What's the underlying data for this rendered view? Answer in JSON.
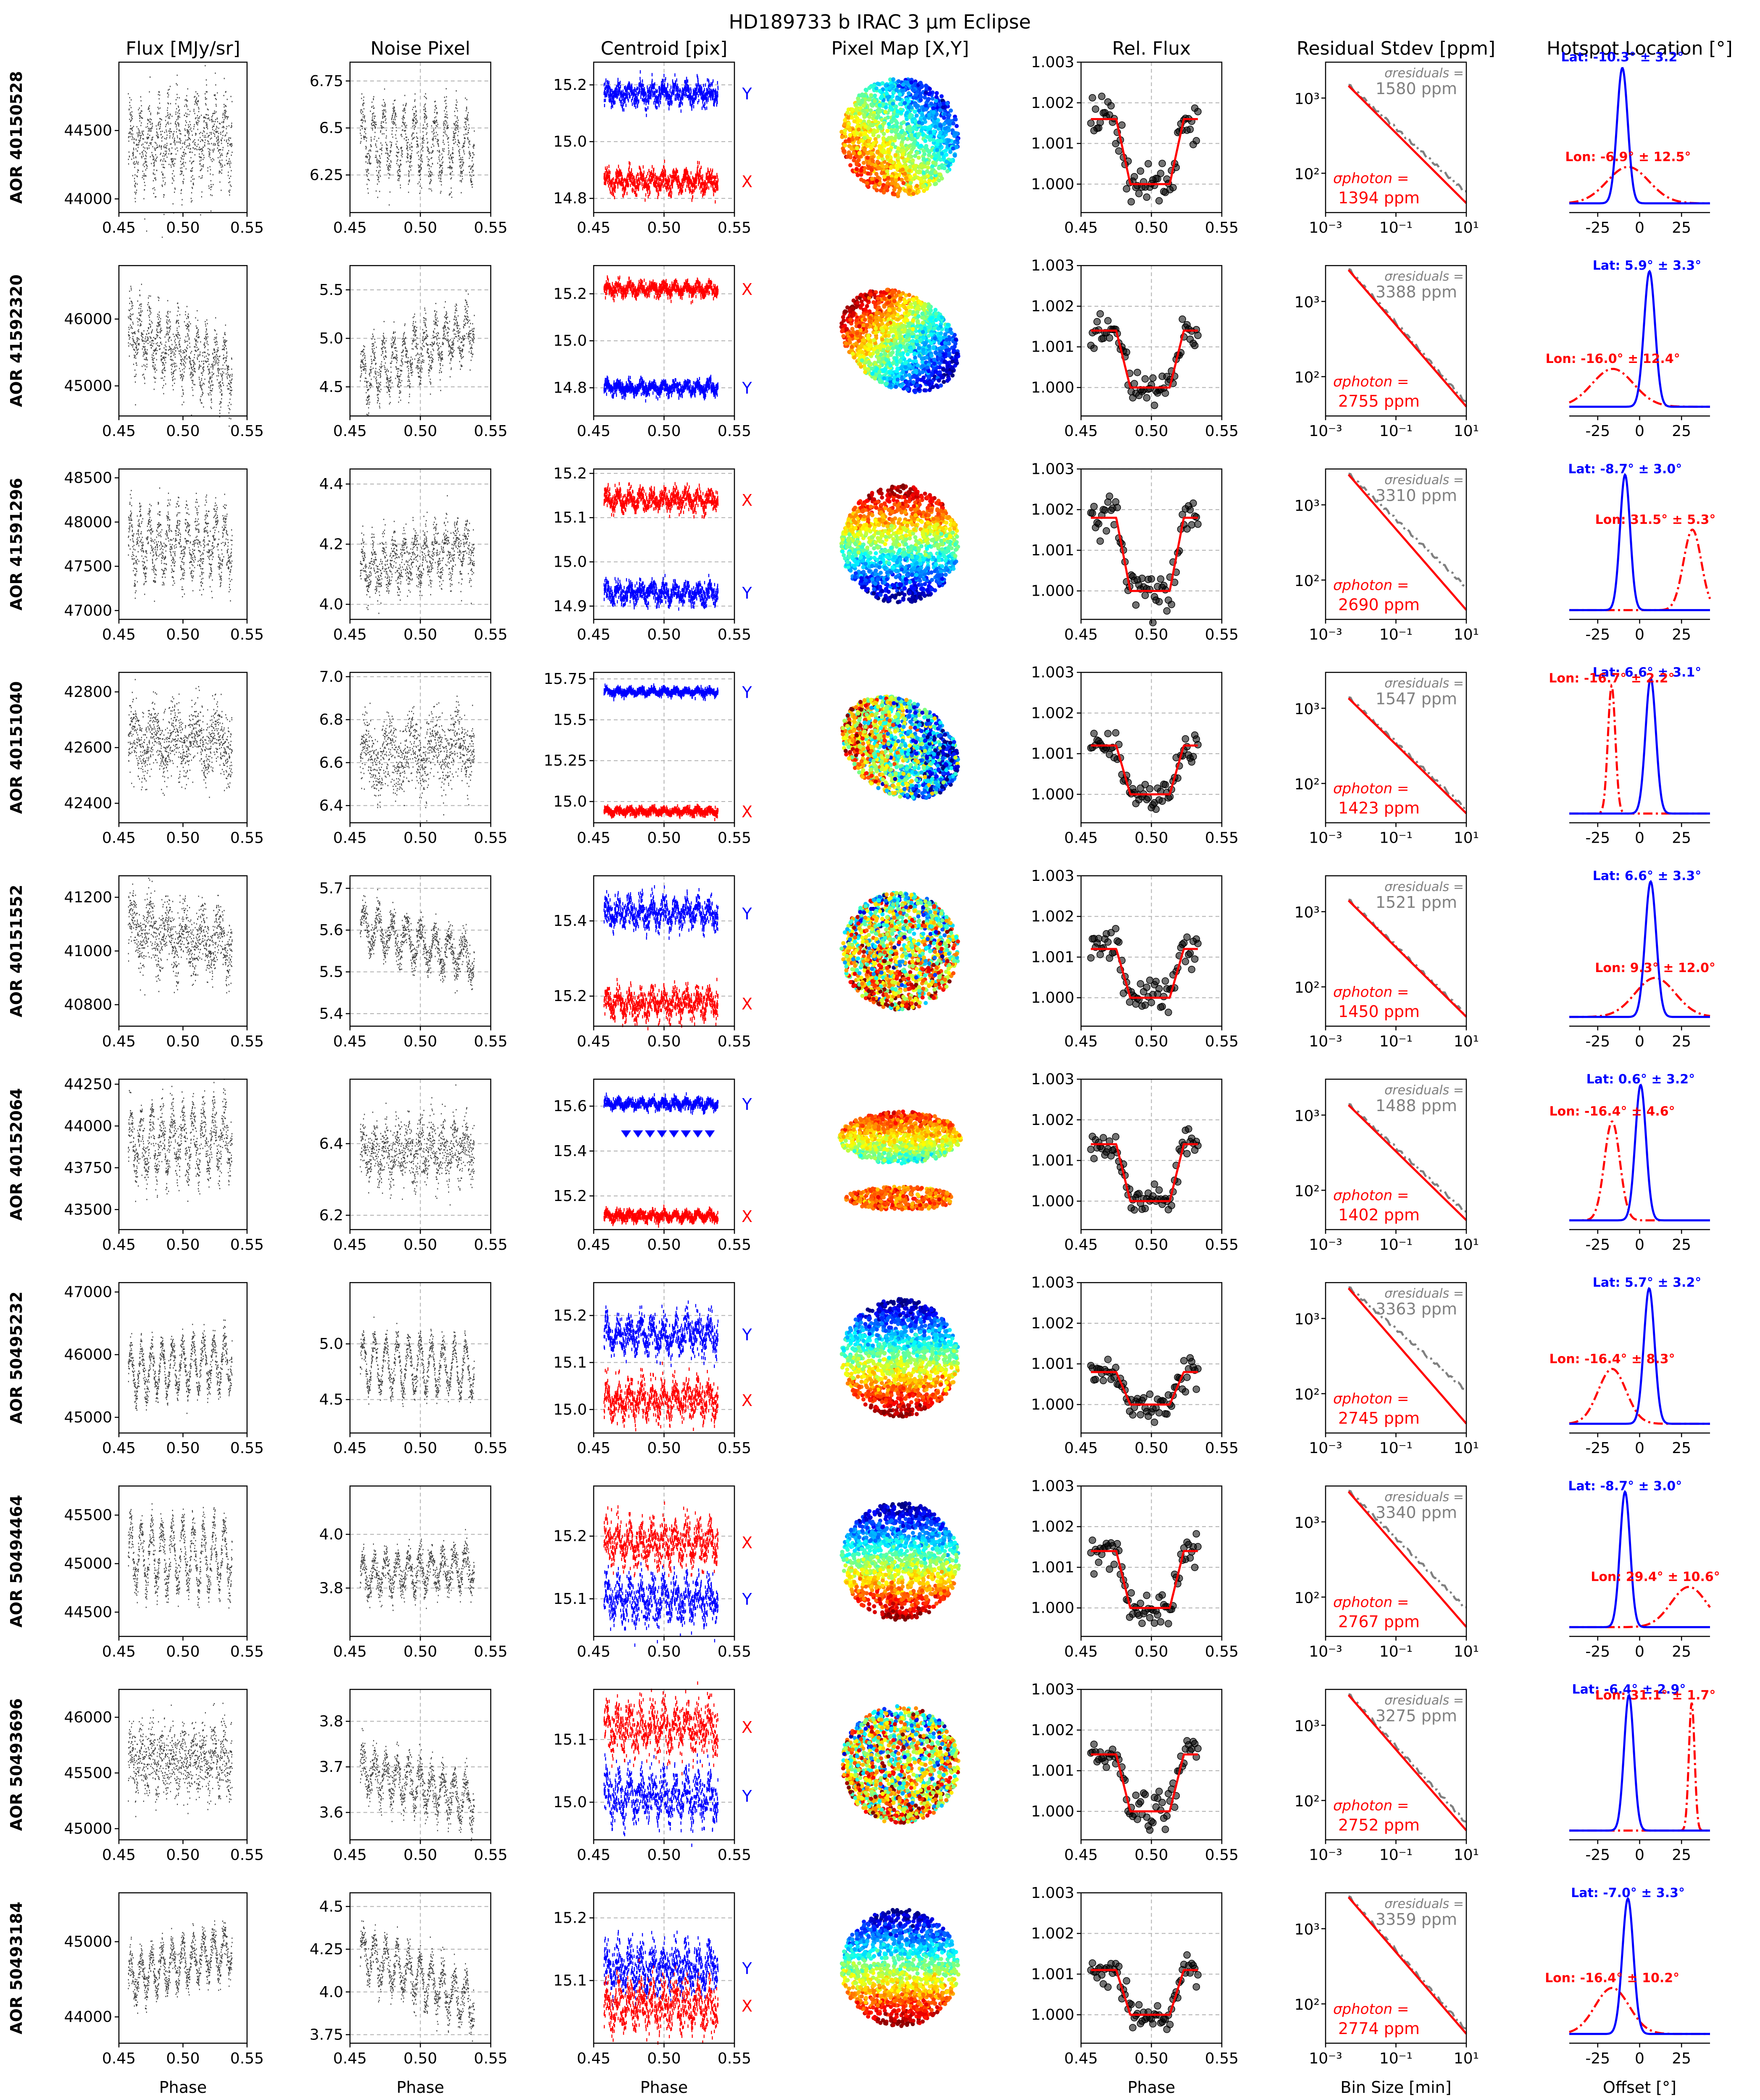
{
  "figure": {
    "title": "HD189733 b IRAC 3 μm Eclipse",
    "column_titles": [
      "Flux [MJy/sr]",
      "Noise Pixel",
      "Centroid [pix]",
      "Pixel Map [X,Y]",
      "Rel. Flux",
      "Residual Stdev [ppm]",
      "Hotspot Location [°]"
    ],
    "bottom_xlabels": [
      "Phase",
      "Phase",
      "Phase",
      "",
      "Phase",
      "Bin Size [min]",
      "Offset [°]"
    ],
    "row_labels": [
      "AOR 40150528",
      "AOR 41592320",
      "AOR 41591296",
      "AOR 40151040",
      "AOR 40151552",
      "AOR 40152064",
      "AOR 50495232",
      "AOR 50494464",
      "AOR 50493696",
      "AOR 50493184"
    ]
  },
  "colors": {
    "x_centroid": "#ff0000",
    "y_centroid": "#0000ff",
    "model": "#ff0000",
    "residual_line": "#808080",
    "lat_curve": "#0000ff",
    "lon_curve": "#ff0000",
    "data": "#000000"
  },
  "chart_data": {
    "type": "scatter",
    "phase_axis": {
      "range": [
        0.45,
        0.55
      ],
      "ticks": [
        "0.45",
        "0.50",
        "0.55"
      ]
    },
    "relflux_axis": {
      "range": [
        0.9993,
        1.003
      ],
      "ticks": [
        "1.000",
        "1.001",
        "1.002",
        "1.003"
      ]
    },
    "residual_axis": {
      "scale": "log",
      "x_range": [
        0.001,
        10
      ],
      "y_range": [
        30,
        3000
      ],
      "x_ticks": [
        "10⁻³",
        "10⁻¹",
        "10¹"
      ],
      "y_ticks": [
        "10²",
        "10³"
      ]
    },
    "hotspot_axis": {
      "range": [
        -42,
        42
      ],
      "ticks": [
        "-25",
        "0",
        "25"
      ]
    },
    "pixel_map": {
      "colormap": "jet"
    },
    "rows": [
      {
        "aor": "AOR 40150528",
        "flux": {
          "ticks": [
            44000,
            44500
          ],
          "ylim": [
            43900,
            45000
          ],
          "mean": 44420,
          "amp": 180,
          "noise": 140,
          "trend": 80,
          "cycles": 11
        },
        "noise_pixel": {
          "ticks": [
            6.25,
            6.5,
            6.75
          ],
          "ylim": [
            6.05,
            6.85
          ],
          "mean": 6.42,
          "amp": 0.16,
          "noise": 0.06,
          "trend": -0.02,
          "cycles": 11
        },
        "centroid": {
          "ticks": [
            14.8,
            15.0,
            15.2
          ],
          "ylim": [
            14.75,
            15.28
          ],
          "x_mean": 14.86,
          "y_mean": 15.17,
          "amp": 0.02,
          "label_x": "X",
          "label_y": "Y",
          "pattern": "normal"
        },
        "pixel_map": {
          "shape": "round",
          "cmap_dir": "tr-bl"
        },
        "rel_flux": {
          "depth": 0.0016,
          "noise": 0.0003
        },
        "residuals": {
          "sigma_residuals_label": "σresiduals =",
          "sigma_residuals_value": "1580 ppm",
          "sigma_photon_label": "σphoton =",
          "sigma_photon_value": "1394 ppm",
          "start": 1500,
          "end_gray": 55,
          "end_red": 40
        },
        "hotspot": {
          "lat": -10.3,
          "lat_sd": 3.2,
          "lon": -6.9,
          "lon_sd": 12.5,
          "lat_label": "Lat: -10.3° ± 3.2°",
          "lon_label": "Lon: -6.9° ± 12.5°"
        }
      },
      {
        "aor": "AOR 41592320",
        "flux": {
          "ticks": [
            45000,
            46000
          ],
          "ylim": [
            44550,
            46800
          ],
          "mean": 45500,
          "amp": 320,
          "noise": 200,
          "trend": -600,
          "cycles": 11
        },
        "noise_pixel": {
          "ticks": [
            4.5,
            5.0,
            5.5
          ],
          "ylim": [
            4.2,
            5.75
          ],
          "mean": 4.85,
          "amp": 0.22,
          "noise": 0.1,
          "trend": 0.5,
          "cycles": 11
        },
        "centroid": {
          "ticks": [
            14.8,
            15.0,
            15.2
          ],
          "ylim": [
            14.68,
            15.32
          ],
          "x_mean": 15.22,
          "y_mean": 14.8,
          "amp": 0.015,
          "label_x": "X",
          "label_y": "Y",
          "pattern": "normal"
        },
        "pixel_map": {
          "shape": "tilted",
          "cmap_dir": "tl-br"
        },
        "rel_flux": {
          "depth": 0.0014,
          "noise": 0.0002
        },
        "residuals": {
          "sigma_residuals_label": "σresiduals =",
          "sigma_residuals_value": "3388 ppm",
          "sigma_photon_label": "σphoton =",
          "sigma_photon_value": "2755 ppm",
          "start": 2700,
          "end_gray": 45,
          "end_red": 40
        },
        "hotspot": {
          "lat": 5.9,
          "lat_sd": 3.3,
          "lon": -16.0,
          "lon_sd": 12.4,
          "lat_label": "Lat: 5.9° ± 3.3°",
          "lon_label": "Lon: -16.0° ± 12.4°"
        }
      },
      {
        "aor": "AOR 41591296",
        "flux": {
          "ticks": [
            47000,
            47500,
            48000,
            48500
          ],
          "ylim": [
            46900,
            48600
          ],
          "mean": 47750,
          "amp": 300,
          "noise": 150,
          "trend": 0,
          "cycles": 11
        },
        "noise_pixel": {
          "ticks": [
            4.0,
            4.2,
            4.4
          ],
          "ylim": [
            3.95,
            4.45
          ],
          "mean": 4.15,
          "amp": 0.06,
          "noise": 0.04,
          "trend": 0.08,
          "cycles": 11
        },
        "centroid": {
          "ticks": [
            14.9,
            15.0,
            15.1,
            15.2
          ],
          "ylim": [
            14.87,
            15.21
          ],
          "x_mean": 15.14,
          "y_mean": 14.93,
          "amp": 0.012,
          "label_x": "X",
          "label_y": "Y",
          "pattern": "normal"
        },
        "pixel_map": {
          "shape": "round",
          "cmap_dir": "b-t"
        },
        "rel_flux": {
          "depth": 0.0018,
          "noise": 0.00025
        },
        "residuals": {
          "sigma_residuals_label": "σresiduals =",
          "sigma_residuals_value": "3310 ppm",
          "sigma_photon_label": "σphoton =",
          "sigma_photon_value": "2690 ppm",
          "start": 2600,
          "end_gray": 80,
          "end_red": 40
        },
        "hotspot": {
          "lat": -8.7,
          "lat_sd": 3.0,
          "lon": 31.5,
          "lon_sd": 5.3,
          "lat_label": "Lat: -8.7° ± 3.0°",
          "lon_label": "Lon: 31.5° ± 5.3°"
        }
      },
      {
        "aor": "AOR 40151040",
        "flux": {
          "ticks": [
            42400,
            42600,
            42800
          ],
          "ylim": [
            42330,
            42870
          ],
          "mean": 42620,
          "amp": 50,
          "noise": 60,
          "trend": 0,
          "cycles": 5
        },
        "noise_pixel": {
          "ticks": [
            6.4,
            6.6,
            6.8,
            7.0
          ],
          "ylim": [
            6.32,
            7.02
          ],
          "mean": 6.65,
          "amp": 0.07,
          "noise": 0.08,
          "trend": 0.06,
          "cycles": 5
        },
        "centroid": {
          "ticks": [
            15.0,
            15.25,
            15.5,
            15.75
          ],
          "ylim": [
            14.87,
            15.79
          ],
          "x_mean": 14.94,
          "y_mean": 15.67,
          "amp": 0.012,
          "label_x": "X",
          "label_y": "Y",
          "pattern": "normal"
        },
        "pixel_map": {
          "shape": "tilted",
          "cmap_dir": "speckle"
        },
        "rel_flux": {
          "depth": 0.0012,
          "noise": 0.0002
        },
        "residuals": {
          "sigma_residuals_label": "σresiduals =",
          "sigma_residuals_value": "1547 ppm",
          "sigma_photon_label": "σphoton =",
          "sigma_photon_value": "1423 ppm",
          "start": 1400,
          "end_gray": 45,
          "end_red": 40
        },
        "hotspot": {
          "lat": 6.6,
          "lat_sd": 3.1,
          "lon": -16.7,
          "lon_sd": 2.2,
          "lat_label": "Lat: 6.6° ± 3.1°",
          "lon_label": "Lon: -16.7° ± 2.2°"
        }
      },
      {
        "aor": "AOR 40151552",
        "flux": {
          "ticks": [
            40800,
            41000,
            41200
          ],
          "ylim": [
            40720,
            41280
          ],
          "mean": 41050,
          "amp": 60,
          "noise": 60,
          "trend": -60,
          "cycles": 6
        },
        "noise_pixel": {
          "ticks": [
            5.4,
            5.5,
            5.6,
            5.7
          ],
          "ylim": [
            5.37,
            5.73
          ],
          "mean": 5.57,
          "amp": 0.04,
          "noise": 0.02,
          "trend": -0.08,
          "cycles": 8
        },
        "centroid": {
          "ticks": [
            15.2,
            15.4
          ],
          "ylim": [
            15.12,
            15.52
          ],
          "x_mean": 15.18,
          "y_mean": 15.42,
          "amp": 0.02,
          "label_x": "X",
          "label_y": "Y",
          "pattern": "normal"
        },
        "pixel_map": {
          "shape": "round",
          "cmap_dir": "mid"
        },
        "rel_flux": {
          "depth": 0.0012,
          "noise": 0.0002
        },
        "residuals": {
          "sigma_residuals_label": "σresiduals =",
          "sigma_residuals_value": "1521 ppm",
          "sigma_photon_label": "σphoton =",
          "sigma_photon_value": "1450 ppm",
          "start": 1450,
          "end_gray": 42,
          "end_red": 40
        },
        "hotspot": {
          "lat": 6.6,
          "lat_sd": 3.3,
          "lon": 9.3,
          "lon_sd": 12.0,
          "lat_label": "Lat: 6.6° ± 3.3°",
          "lon_label": "Lon: 9.3° ± 12.0°"
        }
      },
      {
        "aor": "AOR 40152064",
        "flux": {
          "ticks": [
            43500,
            43750,
            44000,
            44250
          ],
          "ylim": [
            43380,
            44280
          ],
          "mean": 43900,
          "amp": 160,
          "noise": 80,
          "trend": 40,
          "cycles": 10
        },
        "noise_pixel": {
          "ticks": [
            6.2,
            6.4
          ],
          "ylim": [
            6.16,
            6.58
          ],
          "mean": 6.38,
          "amp": 0.04,
          "noise": 0.04,
          "trend": 0.02,
          "cycles": 10
        },
        "centroid": {
          "ticks": [
            15.2,
            15.4,
            15.6
          ],
          "ylim": [
            15.05,
            15.72
          ],
          "x_mean": 15.11,
          "y_mean": 15.61,
          "amp": 0.012,
          "label_x": "X",
          "label_y": "Y",
          "pattern": "split"
        },
        "pixel_map": {
          "shape": "split",
          "cmap_dir": "b-t"
        },
        "rel_flux": {
          "depth": 0.0014,
          "noise": 0.0002
        },
        "residuals": {
          "sigma_residuals_label": "σresiduals =",
          "sigma_residuals_value": "1488 ppm",
          "sigma_photon_label": "σphoton =",
          "sigma_photon_value": "1402 ppm",
          "start": 1400,
          "end_gray": 50,
          "end_red": 40
        },
        "hotspot": {
          "lat": 0.6,
          "lat_sd": 3.2,
          "lon": -16.4,
          "lon_sd": 4.6,
          "lat_label": "Lat: 0.6° ± 3.2°",
          "lon_label": "Lon: -16.4° ± 4.6°"
        }
      },
      {
        "aor": "AOR 50495232",
        "flux": {
          "ticks": [
            45000,
            46000,
            47000
          ],
          "ylim": [
            44750,
            47150
          ],
          "mean": 45800,
          "amp": 380,
          "noise": 120,
          "trend": 200,
          "cycles": 10
        },
        "noise_pixel": {
          "ticks": [
            4.5,
            5.0
          ],
          "ylim": [
            4.2,
            5.55
          ],
          "mean": 4.8,
          "amp": 0.22,
          "noise": 0.06,
          "trend": -0.05,
          "cycles": 10
        },
        "centroid": {
          "ticks": [
            15.0,
            15.1,
            15.2
          ],
          "ylim": [
            14.95,
            15.27
          ],
          "x_mean": 15.02,
          "y_mean": 15.16,
          "amp": 0.02,
          "label_x": "X",
          "label_y": "Y",
          "pattern": "normal"
        },
        "pixel_map": {
          "shape": "round",
          "cmap_dir": "t-b"
        },
        "rel_flux": {
          "depth": 0.0008,
          "noise": 0.0002
        },
        "residuals": {
          "sigma_residuals_label": "σresiduals =",
          "sigma_residuals_value": "3363 ppm",
          "sigma_photon_label": "σphoton =",
          "sigma_photon_value": "2745 ppm",
          "start": 2600,
          "end_gray": 110,
          "end_red": 40
        },
        "hotspot": {
          "lat": 5.7,
          "lat_sd": 3.2,
          "lon": -16.4,
          "lon_sd": 8.3,
          "lat_label": "Lat: 5.7° ± 3.2°",
          "lon_label": "Lon: -16.4° ± 8.3°"
        }
      },
      {
        "aor": "AOR 50494464",
        "flux": {
          "ticks": [
            44500,
            45000,
            45500
          ],
          "ylim": [
            44250,
            45800
          ],
          "mean": 45080,
          "amp": 320,
          "noise": 100,
          "trend": 0,
          "cycles": 10
        },
        "noise_pixel": {
          "ticks": [
            3.8,
            4.0
          ],
          "ylim": [
            3.62,
            4.18
          ],
          "mean": 3.86,
          "amp": 0.06,
          "noise": 0.03,
          "trend": 0.04,
          "cycles": 10
        },
        "centroid": {
          "ticks": [
            15.1,
            15.2
          ],
          "ylim": [
            15.04,
            15.28
          ],
          "x_mean": 15.19,
          "y_mean": 15.1,
          "amp": 0.018,
          "label_x": "X",
          "label_y": "Y",
          "pattern": "normal"
        },
        "pixel_map": {
          "shape": "round",
          "cmap_dir": "t-b"
        },
        "rel_flux": {
          "depth": 0.0014,
          "noise": 0.0002
        },
        "residuals": {
          "sigma_residuals_label": "σresiduals =",
          "sigma_residuals_value": "3340 ppm",
          "sigma_photon_label": "σphoton =",
          "sigma_photon_value": "2767 ppm",
          "start": 2600,
          "end_gray": 70,
          "end_red": 40
        },
        "hotspot": {
          "lat": -8.7,
          "lat_sd": 3.0,
          "lon": 29.4,
          "lon_sd": 10.6,
          "lat_label": "Lat: -8.7° ± 3.0°",
          "lon_label": "Lon: 29.4° ± 10.6°"
        }
      },
      {
        "aor": "AOR 50493696",
        "flux": {
          "ticks": [
            45000,
            45500,
            46000
          ],
          "ylim": [
            44900,
            46250
          ],
          "mean": 45620,
          "amp": 120,
          "noise": 150,
          "trend": 0,
          "cycles": 10
        },
        "noise_pixel": {
          "ticks": [
            3.6,
            3.7,
            3.8
          ],
          "ylim": [
            3.54,
            3.87
          ],
          "mean": 3.66,
          "amp": 0.04,
          "noise": 0.02,
          "trend": -0.07,
          "cycles": 10
        },
        "centroid": {
          "ticks": [
            15.0,
            15.1
          ],
          "ylim": [
            14.94,
            15.18
          ],
          "x_mean": 15.12,
          "y_mean": 15.01,
          "amp": 0.02,
          "label_x": "X",
          "label_y": "Y",
          "pattern": "normal"
        },
        "pixel_map": {
          "shape": "round",
          "cmap_dir": "mid"
        },
        "rel_flux": {
          "depth": 0.0014,
          "noise": 0.0002
        },
        "residuals": {
          "sigma_residuals_label": "σresiduals =",
          "sigma_residuals_value": "3275 ppm",
          "sigma_photon_label": "σphoton =",
          "sigma_photon_value": "2752 ppm",
          "start": 2600,
          "end_gray": 50,
          "end_red": 40
        },
        "hotspot": {
          "lat": -6.4,
          "lat_sd": 2.9,
          "lon": 31.1,
          "lon_sd": 1.7,
          "lat_label": "Lat: -6.4° ± 2.9°",
          "lon_label": "Lon: 31.1° ± 1.7°"
        }
      },
      {
        "aor": "AOR 50493184",
        "flux": {
          "ticks": [
            44000,
            45000
          ],
          "ylim": [
            43650,
            45650
          ],
          "mean": 44700,
          "amp": 260,
          "noise": 100,
          "trend": 400,
          "cycles": 10
        },
        "noise_pixel": {
          "ticks": [
            3.75,
            4.0,
            4.25,
            4.5
          ],
          "ylim": [
            3.7,
            4.58
          ],
          "mean": 4.08,
          "amp": 0.12,
          "noise": 0.05,
          "trend": -0.3,
          "cycles": 10
        },
        "centroid": {
          "ticks": [
            15.1,
            15.2
          ],
          "ylim": [
            15.0,
            15.24
          ],
          "x_mean": 15.06,
          "y_mean": 15.12,
          "amp": 0.02,
          "label_x": "X",
          "label_y": "Y",
          "pattern": "normal"
        },
        "pixel_map": {
          "shape": "round",
          "cmap_dir": "t-b"
        },
        "rel_flux": {
          "depth": 0.0011,
          "noise": 0.0002
        },
        "residuals": {
          "sigma_residuals_label": "σresiduals =",
          "sigma_residuals_value": "3359 ppm",
          "sigma_photon_label": "σphoton =",
          "sigma_photon_value": "2774 ppm",
          "start": 2700,
          "end_gray": 45,
          "end_red": 40
        },
        "hotspot": {
          "lat": -7.0,
          "lat_sd": 3.3,
          "lon": -16.4,
          "lon_sd": 10.2,
          "lat_label": "Lat: -7.0° ± 3.3°",
          "lon_label": "Lon: -16.4° ± 10.2°"
        }
      }
    ]
  }
}
